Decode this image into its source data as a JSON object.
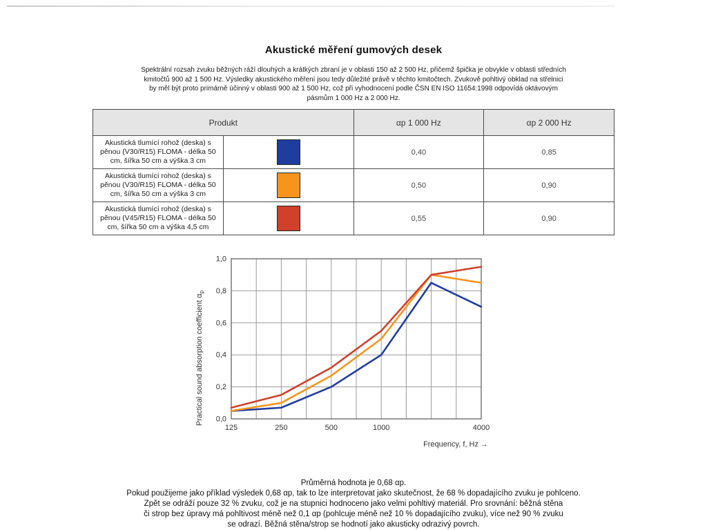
{
  "page": {
    "title": "Akustické měření gumových desek"
  },
  "intro": {
    "lines": [
      "Spektrální rozsah zvuku běžných ráží dlouhých a krátkých zbraní je v oblasti 150 až 2 500 Hz, přičemž špička je obvykle v oblasti středních",
      "kmitočtů 900 až 1 500 Hz. Výsledky akustického měření jsou tedy důležité právě v těchto kmitočtech. Zvukově pohltivý obklad na střelnici",
      "by měl být proto primárně účinný v oblasti 900 až 1 500 Hz, což při vyhodnocení podle ČSN EN ISO 11654:1998 odpovídá oktávovým",
      "pásmům 1 000 Hz a 2 000 Hz."
    ]
  },
  "table": {
    "headers": {
      "product": "Produkt",
      "ap1000": "αp 1 000 Hz",
      "ap2000": "αp 2 000 Hz"
    },
    "rows": [
      {
        "product": "Akustická tlumící rohož (deska) s pěnou (V30/R15) FLOMA - délka 50 cm, šířka 50 cm a výška 3 cm",
        "color": "#1f3d9e",
        "ap1000": "0,40",
        "ap2000": "0,85"
      },
      {
        "product": "Akustická tlumící rohož (deska) s pěnou (V30/R15) FLOMA - délka 50 cm, šířka 50 cm a výška 3 cm",
        "color": "#f7941e",
        "ap1000": "0,50",
        "ap2000": "0,90"
      },
      {
        "product": "Akustická tlumící rohož (deska) s pěnou (V45/R15) FLOMA - délka 50 cm, šířka 50 cm a výška 4,5 cm",
        "color": "#d0402c",
        "ap1000": "0,55",
        "ap2000": "0,90"
      }
    ]
  },
  "chart_data": {
    "type": "line",
    "x": [
      125,
      250,
      500,
      1000,
      2000,
      4000
    ],
    "x_scale": "log2",
    "x_tick_labels": [
      "125",
      "250",
      "500",
      "1000",
      "",
      "4000"
    ],
    "y_ticks": [
      "0,0",
      "0,2",
      "0,4",
      "0,6",
      "0,8",
      "1,0"
    ],
    "ylim": [
      0,
      1
    ],
    "grid": true,
    "xlabel": "Frequency, f, Hz →",
    "ylabel": "Practical sound absorption coefficient α",
    "ylabel_sub": "p",
    "series": [
      {
        "name": "blue",
        "color": "#1f3d9e",
        "values": [
          0.05,
          0.07,
          0.2,
          0.4,
          0.85,
          0.7
        ]
      },
      {
        "name": "orange",
        "color": "#f7941e",
        "values": [
          0.05,
          0.1,
          0.27,
          0.5,
          0.9,
          0.85
        ]
      },
      {
        "name": "red",
        "color": "#d0402c",
        "values": [
          0.07,
          0.15,
          0.32,
          0.55,
          0.9,
          0.95
        ]
      }
    ]
  },
  "footer": {
    "lines": [
      "Průměrná hodnota je 0,68 αp.",
      "Pokud použijeme jako příklad výsledek 0,68 αp, tak to lze interpretovat jako skutečnost, že 68 % dopadajícího zvuku je pohlceno.",
      "Zpět se odráží pouze 32 % zvuku, což je na stupnici hodnoceno jako velmi pohltivý materiál. Pro srovnání: běžná stěna",
      "či strop bez úpravy má pohltivost méně než 0,1 αp (pohlcuje méně než 10 % dopadajícího zvuku), více než 90 % zvuku",
      "se odrazí. Běžná stěna/strop se hodnotí jako akusticky odrazivý povrch."
    ]
  }
}
